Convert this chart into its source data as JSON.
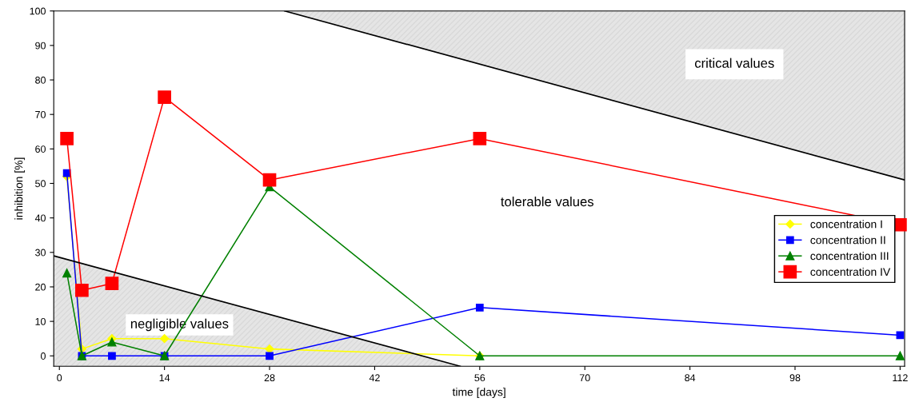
{
  "chart_data": {
    "type": "line",
    "xlabel": "time [days]",
    "ylabel": "inhibition [%]",
    "x": [
      1,
      3,
      7,
      14,
      28,
      56,
      112
    ],
    "xlim": [
      -0.75,
      112.6
    ],
    "xticks": [
      0,
      14,
      28,
      42,
      56,
      70,
      84,
      98,
      112
    ],
    "ylim": [
      -3,
      100
    ],
    "yticks": [
      0,
      10,
      20,
      30,
      40,
      50,
      60,
      70,
      80,
      90,
      100
    ],
    "grid": false,
    "legend": "right",
    "series": [
      {
        "name": "concentration I",
        "color": "#ffff00",
        "marker": "diamond",
        "values": [
          52,
          2,
          5,
          5,
          2,
          0,
          null
        ]
      },
      {
        "name": "concentration II",
        "color": "#0000ff",
        "marker": "square",
        "values": [
          53,
          0,
          0,
          0,
          0,
          14,
          6
        ]
      },
      {
        "name": "concentration III",
        "color": "#008000",
        "marker": "triangle",
        "values": [
          24,
          0,
          4,
          0,
          49,
          0,
          0
        ]
      },
      {
        "name": "concentration IV",
        "color": "#ff0000",
        "marker": "square",
        "values": [
          63,
          19,
          21,
          75,
          51,
          63,
          38
        ]
      },
      {
        "type": "line",
        "color": "#000000",
        "marker": "none",
        "x": [
          30,
          112.6
        ],
        "values": [
          100,
          51
        ],
        "lower": [
          100,
          51
        ],
        "upper": [
          100,
          100
        ]
      },
      {
        "type": "line",
        "color": "#000000",
        "marker": "none",
        "x": [
          -0.75,
          53.4
        ],
        "values": [
          29,
          -3
        ],
        "lower": [
          -3,
          -3
        ],
        "upper": [
          29,
          -3
        ]
      }
    ],
    "annotations": [
      "critical values",
      "tolerable values",
      {
        "text": "negligible values",
        "x": 16,
        "y": 9
      }
    ]
  }
}
